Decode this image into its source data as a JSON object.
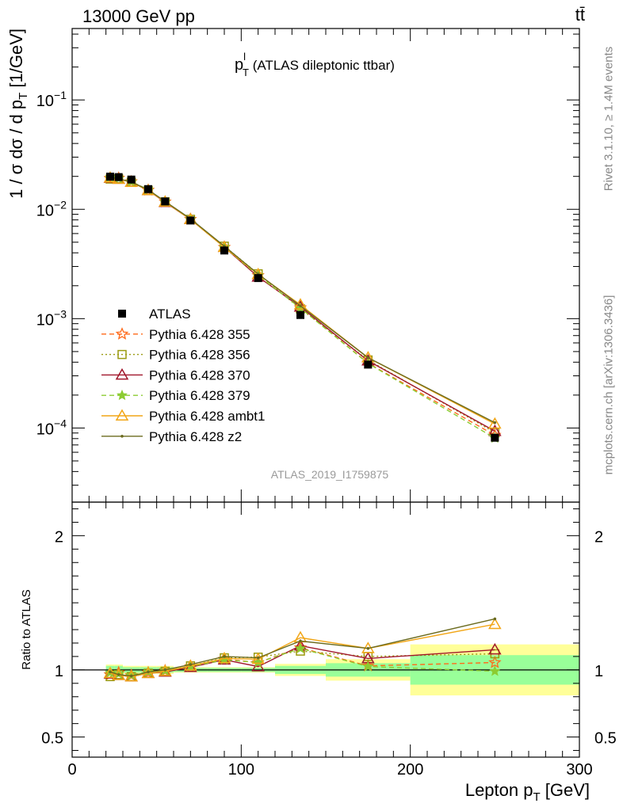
{
  "header": {
    "energy_label": "13000 GeV pp",
    "process_label": "tt̄"
  },
  "side": {
    "rivet": "Rivet 3.1.10, ≥ 1.4M events",
    "mcplots": "mcplots.cern.ch [arXiv:1306.3436]"
  },
  "watermark": "ATLAS_2019_I1759875",
  "colors": {
    "data": "#000000",
    "p355": "#ff6a1a",
    "p356": "#9a9a10",
    "p370": "#a0162a",
    "p379": "#8ccc32",
    "ambt1": "#f2a616",
    "z2": "#6b6b1f",
    "band_inner": "#99ff99",
    "band_outer": "#ffff99"
  },
  "chart_data": [
    {
      "type": "line",
      "title_main": "p",
      "title_sup": "l",
      "title_sub": "T",
      "title_rest": " (ATLAS dileptonic ttbar)",
      "ylabel": "1 / σ  dσ / d p_T [1/GeV]",
      "ylabel_parts": {
        "pre": "1 / σ  dσ / d p",
        "sub": "T",
        "post": " [1/GeV]"
      },
      "yscale": "log",
      "xlim": [
        0,
        300
      ],
      "ylim": [
        2.1e-05,
        0.45
      ],
      "yticks": [
        {
          "value": 0.1,
          "mant": "10",
          "exp": "−1"
        },
        {
          "value": 0.01,
          "mant": "10",
          "exp": "−2"
        },
        {
          "value": 0.001,
          "mant": "10",
          "exp": "−3"
        },
        {
          "value": 0.0001,
          "mant": "10",
          "exp": "−4"
        }
      ],
      "x": [
        22.5,
        27.5,
        35,
        45,
        55,
        70,
        90,
        110,
        135,
        175,
        250
      ],
      "series": [
        {
          "name": "ATLAS",
          "key": "data",
          "style": "data",
          "values": [
            0.0199,
            0.0197,
            0.0187,
            0.0153,
            0.0118,
            0.0079,
            0.0042,
            0.00235,
            0.00108,
            0.00038,
            8.15e-05
          ]
        },
        {
          "name": "Pythia 6.428 355",
          "key": "p355",
          "style": "dashed",
          "marker": "star-open",
          "values": [
            0.0192,
            0.0193,
            0.0179,
            0.015,
            0.0117,
            0.0081,
            0.0045,
            0.00248,
            0.00126,
            0.000392,
            8.6e-05
          ]
        },
        {
          "name": "Pythia 6.428 356",
          "key": "p356",
          "style": "dotted",
          "marker": "square-open",
          "values": [
            0.0189,
            0.019,
            0.0177,
            0.0149,
            0.0117,
            0.0081,
            0.0046,
            0.00257,
            0.00123,
            0.000419,
            9.1e-05
          ]
        },
        {
          "name": "Pythia 6.428 370",
          "key": "p370",
          "style": "solid",
          "marker": "triangle-open",
          "values": [
            0.0193,
            0.0189,
            0.0177,
            0.0149,
            0.0116,
            0.0081,
            0.0045,
            0.00241,
            0.00128,
            0.000412,
            9.35e-05
          ]
        },
        {
          "name": "Pythia 6.428 379",
          "key": "p379",
          "style": "dashed",
          "marker": "star-filled",
          "values": [
            0.0195,
            0.0191,
            0.0179,
            0.0151,
            0.0117,
            0.0081,
            0.0045,
            0.00248,
            0.00125,
            0.00039,
            8.08e-05
          ]
        },
        {
          "name": "Pythia 6.428 ambt1",
          "key": "ambt1",
          "style": "solid",
          "marker": "triangle-open",
          "values": [
            0.0194,
            0.0189,
            0.0177,
            0.0149,
            0.0117,
            0.0081,
            0.0045,
            0.00254,
            0.00134,
            0.00044,
            0.000109
          ]
        },
        {
          "name": "Pythia 6.428 z2",
          "key": "z2",
          "style": "solid",
          "marker": "dot",
          "values": [
            0.0196,
            0.019,
            0.0178,
            0.0151,
            0.0118,
            0.0082,
            0.0046,
            0.00256,
            0.00131,
            0.00044,
            0.000112
          ]
        }
      ]
    },
    {
      "type": "line",
      "ylabel": "Ratio to ATLAS",
      "xlabel": "Lepton p_T [GeV]",
      "xlabel_parts": {
        "pre": "Lepton p",
        "sub": "T",
        "post": " [GeV]"
      },
      "xlim": [
        0,
        300
      ],
      "ylim": [
        0.35,
        2.25
      ],
      "xticks": [
        0,
        100,
        200,
        300
      ],
      "yticks": [
        0.5,
        1,
        2
      ],
      "ytick_labels": [
        "0.5",
        "1",
        "2"
      ],
      "bands": [
        {
          "x0": 20,
          "x1": 25,
          "inner": 0.03,
          "outer": 0.04
        },
        {
          "x0": 25,
          "x1": 30,
          "inner": 0.03,
          "outer": 0.04
        },
        {
          "x0": 30,
          "x1": 40,
          "inner": 0.02,
          "outer": 0.03
        },
        {
          "x0": 40,
          "x1": 50,
          "inner": 0.02,
          "outer": 0.03
        },
        {
          "x0": 50,
          "x1": 60,
          "inner": 0.02,
          "outer": 0.03
        },
        {
          "x0": 60,
          "x1": 80,
          "inner": 0.015,
          "outer": 0.02
        },
        {
          "x0": 80,
          "x1": 100,
          "inner": 0.015,
          "outer": 0.02
        },
        {
          "x0": 100,
          "x1": 120,
          "inner": 0.015,
          "outer": 0.02
        },
        {
          "x0": 120,
          "x1": 150,
          "inner": 0.03,
          "outer": 0.045
        },
        {
          "x0": 150,
          "x1": 200,
          "inner": 0.05,
          "outer": 0.08
        },
        {
          "x0": 200,
          "x1": 300,
          "inner": 0.11,
          "outer": 0.19
        }
      ],
      "series": [
        {
          "key": "p355",
          "values": [
            0.965,
            0.98,
            0.96,
            0.98,
            0.995,
            1.025,
            1.08,
            1.055,
            1.165,
            1.03,
            1.055
          ]
        },
        {
          "key": "p356",
          "values": [
            0.95,
            0.965,
            0.95,
            0.975,
            0.99,
            1.03,
            1.09,
            1.095,
            1.14,
            1.1,
            1.12
          ]
        },
        {
          "key": "p370",
          "values": [
            0.97,
            0.96,
            0.95,
            0.975,
            0.985,
            1.02,
            1.075,
            1.025,
            1.18,
            1.085,
            1.15
          ]
        },
        {
          "key": "p379",
          "values": [
            0.98,
            0.97,
            0.96,
            0.985,
            0.995,
            1.025,
            1.075,
            1.055,
            1.16,
            1.025,
            0.99
          ]
        },
        {
          "key": "ambt1",
          "values": [
            0.975,
            0.96,
            0.95,
            0.975,
            0.99,
            1.03,
            1.085,
            1.08,
            1.24,
            1.16,
            1.34
          ]
        },
        {
          "key": "z2",
          "values": [
            0.985,
            0.965,
            0.955,
            0.985,
            1.0,
            1.04,
            1.1,
            1.09,
            1.215,
            1.16,
            1.38
          ]
        }
      ]
    }
  ]
}
